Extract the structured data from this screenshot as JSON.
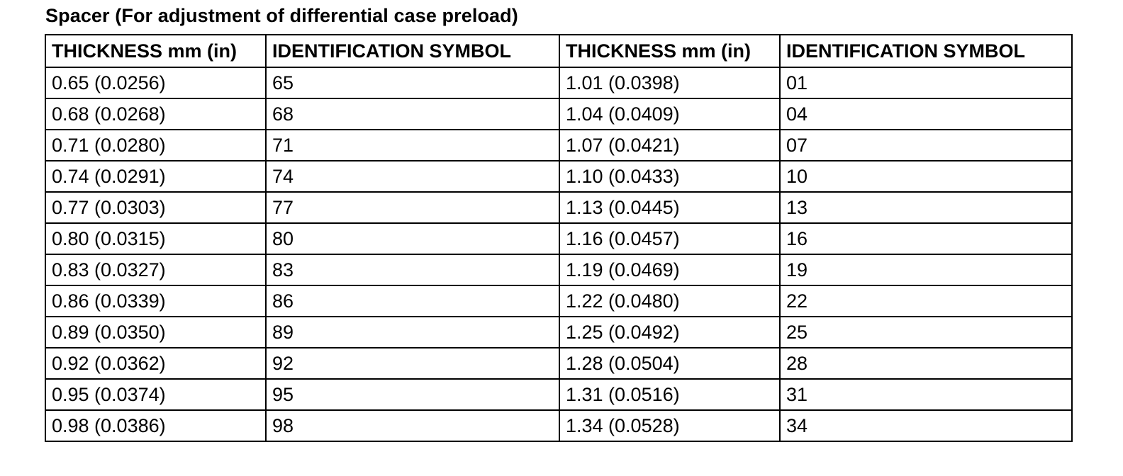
{
  "title": "Spacer (For adjustment of differential case preload)",
  "table": {
    "headers": [
      "THICKNESS mm (in)",
      "IDENTIFICATION SYMBOL",
      "THICKNESS mm (in)",
      "IDENTIFICATION SYMBOL"
    ],
    "rows": [
      [
        "0.65 (0.0256)",
        "65",
        "1.01 (0.0398)",
        "01"
      ],
      [
        "0.68 (0.0268)",
        "68",
        "1.04 (0.0409)",
        "04"
      ],
      [
        "0.71 (0.0280)",
        "71",
        "1.07 (0.0421)",
        "07"
      ],
      [
        "0.74 (0.0291)",
        "74",
        "1.10 (0.0433)",
        "10"
      ],
      [
        "0.77 (0.0303)",
        "77",
        "1.13 (0.0445)",
        "13"
      ],
      [
        "0.80 (0.0315)",
        "80",
        "1.16 (0.0457)",
        "16"
      ],
      [
        "0.83 (0.0327)",
        "83",
        "1.19 (0.0469)",
        "19"
      ],
      [
        "0.86 (0.0339)",
        "86",
        "1.22 (0.0480)",
        "22"
      ],
      [
        "0.89 (0.0350)",
        "89",
        "1.25 (0.0492)",
        "25"
      ],
      [
        "0.92 (0.0362)",
        "92",
        "1.28 (0.0504)",
        "28"
      ],
      [
        "0.95 (0.0374)",
        "95",
        "1.31 (0.0516)",
        "31"
      ],
      [
        "0.98 (0.0386)",
        "98",
        "1.34 (0.0528)",
        "34"
      ]
    ]
  }
}
